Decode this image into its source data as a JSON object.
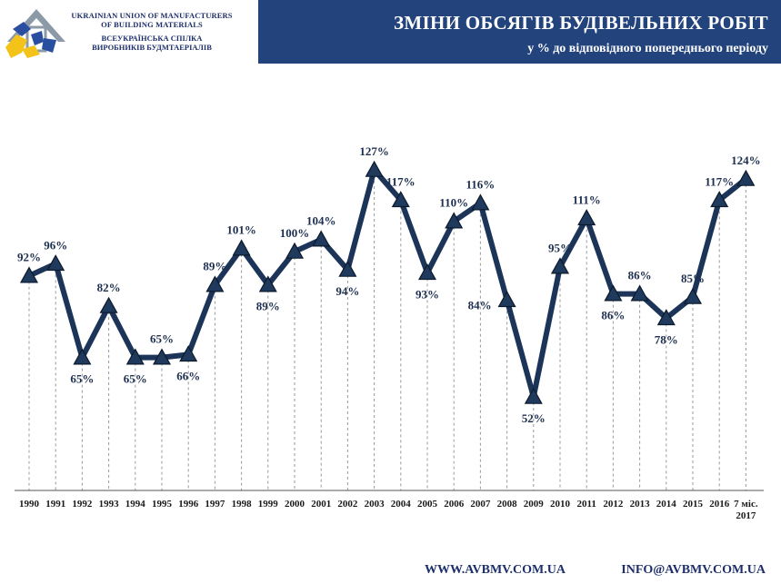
{
  "header": {
    "org_en_line1": "UKRAINIAN UNION OF MANUFACTURERS",
    "org_en_line2": "OF BUILDING MATERIALS",
    "org_ua_line1": "ВСЕУКРАЇНСЬКА СПІЛКА",
    "org_ua_line2": "ВИРОБНИКІВ БУДМТАЕРІАЛІВ",
    "title": "ЗМІНИ ОБСЯГІВ БУДІВЕЛЬНИХ РОБІТ",
    "subtitle": "у % до відповідного попереднього періоду"
  },
  "footer": {
    "website": "WWW.AVBMV.COM.UA",
    "email": "INFO@AVBMV.COM.UA"
  },
  "colors": {
    "header_bg": "#23437c",
    "line": "#1d3459",
    "marker": "#1f3a5c",
    "label": "#1d2f4f",
    "logo_blue": "#2a4ea0",
    "logo_yellow": "#f3c31a"
  },
  "chart_data": {
    "type": "line",
    "title": "ЗМІНИ ОБСЯГІВ БУДІВЕЛЬНИХ РОБІТ",
    "subtitle": "у % до відповідного попереднього періоду",
    "categories": [
      "1990",
      "1991",
      "1992",
      "1993",
      "1994",
      "1995",
      "1996",
      "1997",
      "1998",
      "1999",
      "2000",
      "2001",
      "2002",
      "2003",
      "2004",
      "2005",
      "2006",
      "2007",
      "2008",
      "2009",
      "2010",
      "2011",
      "2012",
      "2013",
      "2014",
      "2015",
      "2016",
      "7 міс. 2017"
    ],
    "values": [
      92,
      96,
      65,
      82,
      65,
      65,
      66,
      89,
      101,
      89,
      100,
      104,
      94,
      127,
      117,
      93,
      110,
      116,
      84,
      52,
      95,
      111,
      86,
      86,
      78,
      85,
      117,
      124
    ],
    "labels": [
      "92%",
      "96%",
      "65%",
      "82%",
      "65%",
      "65%",
      "66%",
      "89%",
      "101%",
      "89%",
      "100%",
      "104%",
      "94%",
      "127%",
      "117%",
      "93%",
      "110%",
      "116%",
      "84%",
      "52%",
      "95%",
      "111%",
      "86%",
      "86%",
      "78%",
      "85%",
      "117%",
      "124%"
    ],
    "label_pos": [
      "above",
      "above",
      "below",
      "above",
      "below",
      "above",
      "below",
      "above",
      "above",
      "below",
      "above",
      "above",
      "below",
      "above",
      "above",
      "below",
      "above",
      "above",
      "left",
      "below",
      "above",
      "above",
      "below",
      "above",
      "below",
      "above",
      "above",
      "above"
    ],
    "marker": "triangle",
    "ylim": [
      17,
      140
    ],
    "grid": "vertical dashed drop lines"
  }
}
